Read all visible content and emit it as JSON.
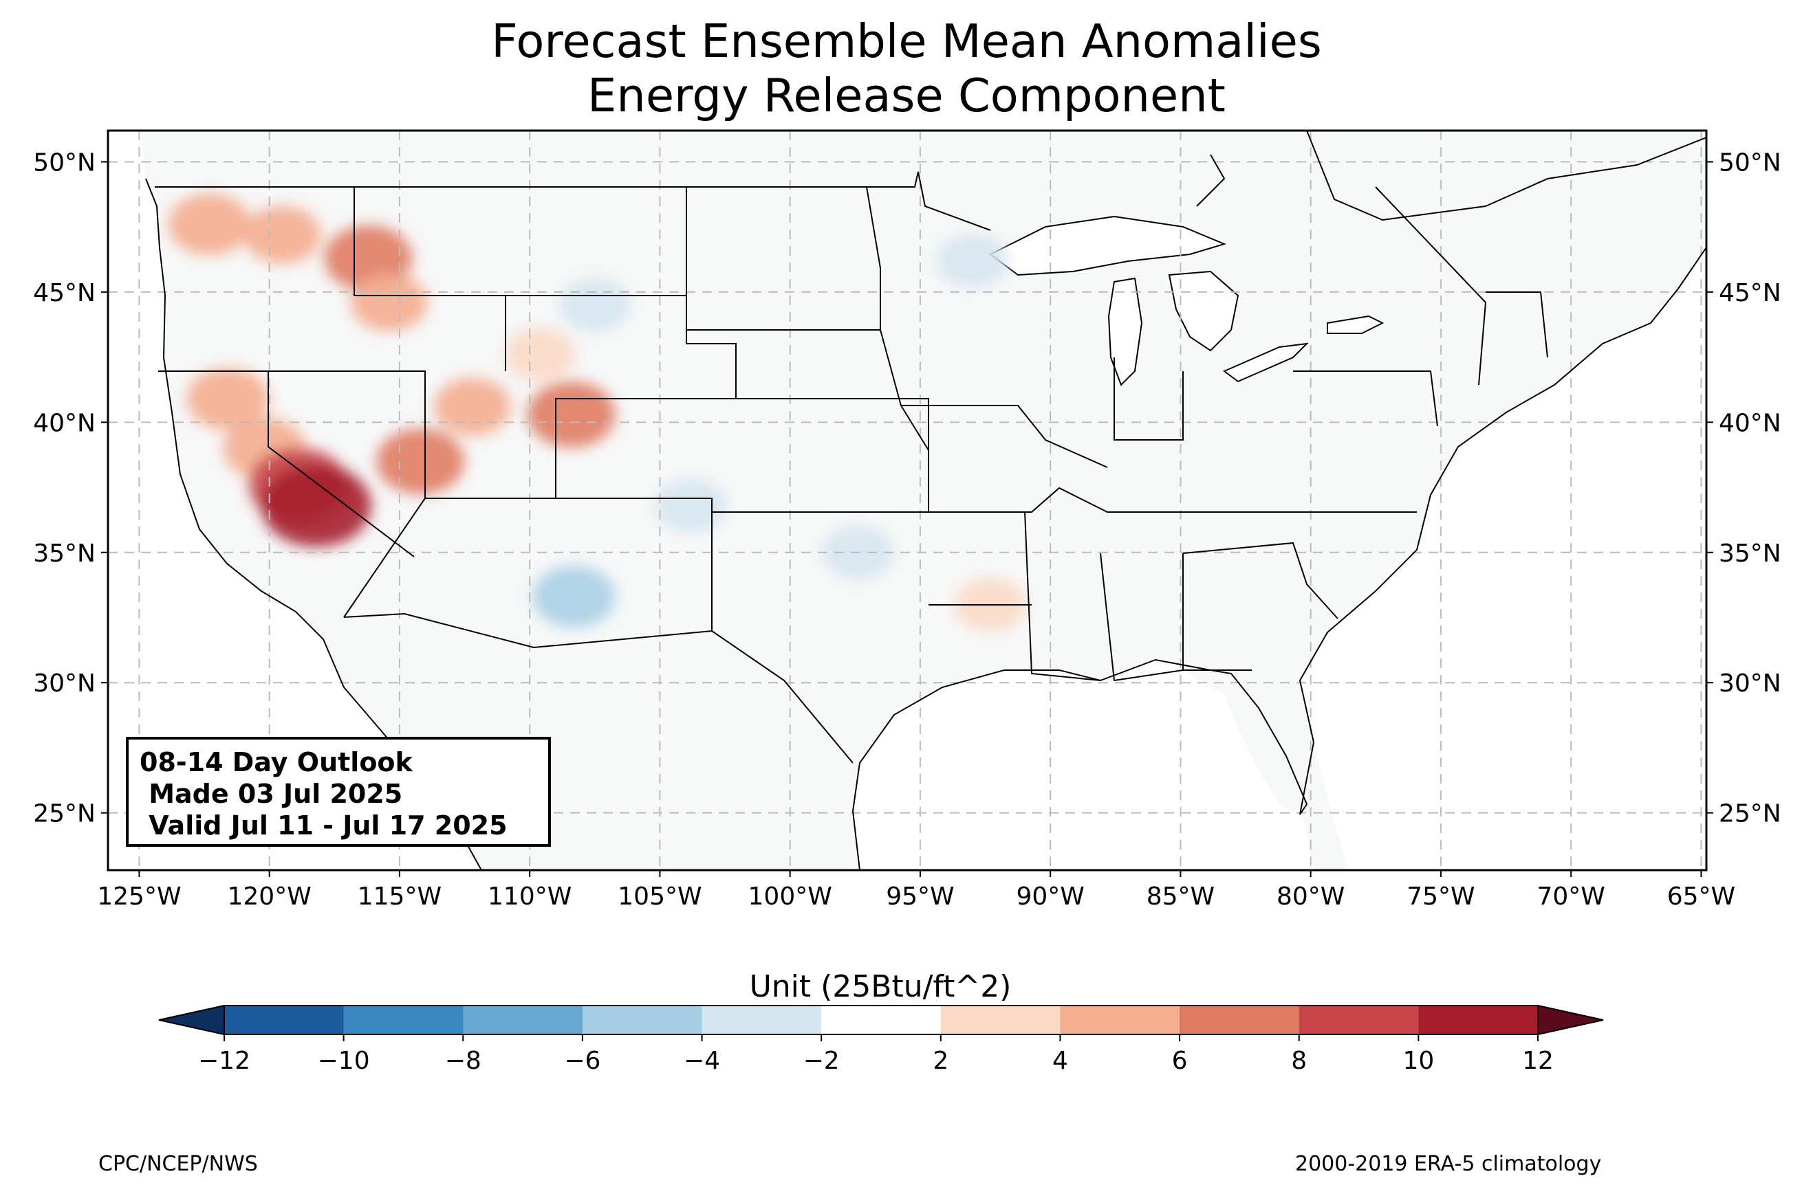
{
  "title": {
    "line1": "Forecast Ensemble Mean Anomalies",
    "line2": "Energy Release Component"
  },
  "map": {
    "projection": "PlateCarree",
    "lon_range": [
      -126.2,
      -64.8
    ],
    "lat_range": [
      22.8,
      51.2
    ],
    "gridlines": true,
    "x_ticks": [
      {
        "value": -125,
        "label": "125°W"
      },
      {
        "value": -120,
        "label": "120°W"
      },
      {
        "value": -115,
        "label": "115°W"
      },
      {
        "value": -110,
        "label": "110°W"
      },
      {
        "value": -105,
        "label": "105°W"
      },
      {
        "value": -100,
        "label": "100°W"
      },
      {
        "value": -95,
        "label": "95°W"
      },
      {
        "value": -90,
        "label": "90°W"
      },
      {
        "value": -85,
        "label": "85°W"
      },
      {
        "value": -80,
        "label": "80°W"
      },
      {
        "value": -75,
        "label": "75°W"
      },
      {
        "value": -70,
        "label": "70°W"
      },
      {
        "value": -65,
        "label": "65°W"
      }
    ],
    "y_ticks": [
      {
        "value": 25,
        "label": "25°N"
      },
      {
        "value": 30,
        "label": "30°N"
      },
      {
        "value": 35,
        "label": "35°N"
      },
      {
        "value": 40,
        "label": "40°N"
      },
      {
        "value": 45,
        "label": "45°N"
      },
      {
        "value": 50,
        "label": "50°N"
      }
    ],
    "anomaly_regions": [
      {
        "lon": -122.3,
        "lat": 47.6,
        "value": 5
      },
      {
        "lon": -119.5,
        "lat": 47.2,
        "value": 4
      },
      {
        "lon": -116.2,
        "lat": 46.3,
        "value": 6
      },
      {
        "lon": -115.4,
        "lat": 44.6,
        "value": 4
      },
      {
        "lon": -121.6,
        "lat": 40.9,
        "value": 5
      },
      {
        "lon": -120.2,
        "lat": 39.0,
        "value": 5
      },
      {
        "lon": -118.9,
        "lat": 37.6,
        "value": 8
      },
      {
        "lon": -118.2,
        "lat": 36.8,
        "value": 10
      },
      {
        "lon": -114.2,
        "lat": 38.5,
        "value": 6
      },
      {
        "lon": -112.2,
        "lat": 40.6,
        "value": 4
      },
      {
        "lon": -108.4,
        "lat": 40.3,
        "value": 6
      },
      {
        "lon": -109.6,
        "lat": 42.6,
        "value": 3
      },
      {
        "lon": -103.8,
        "lat": 36.8,
        "value": -3
      },
      {
        "lon": -108.3,
        "lat": 33.3,
        "value": -5
      },
      {
        "lon": -92.3,
        "lat": 33.0,
        "value": 3
      },
      {
        "lon": -107.5,
        "lat": 44.5,
        "value": -3
      },
      {
        "lon": -97.4,
        "lat": 35.0,
        "value": -3
      },
      {
        "lon": -93.0,
        "lat": 46.2,
        "value": -3
      }
    ]
  },
  "info_box": {
    "line1": "08-14 Day Outlook",
    "line2": " Made 03 Jul 2025",
    "line3": " Valid Jul 11 - Jul 17 2025"
  },
  "colorbar": {
    "label": "Unit (25Btu/ft^2)",
    "ticks": [
      "−12",
      "−10",
      "−8",
      "−6",
      "−4",
      "−2",
      "2",
      "4",
      "6",
      "8",
      "10",
      "12"
    ],
    "colors": [
      "#1c5c9c",
      "#3b87bf",
      "#6aa9d1",
      "#a8cfe4",
      "#d5e6f0",
      "#ffffff",
      "#fbd9c7",
      "#f4ad8f",
      "#e07b63",
      "#c8454a",
      "#a51d2c"
    ],
    "under_color": "#0d2f5e",
    "over_color": "#5c0a1e"
  },
  "footer": {
    "left": "CPC/NCEP/NWS",
    "right": "2000-2019 ERA-5 climatology"
  }
}
